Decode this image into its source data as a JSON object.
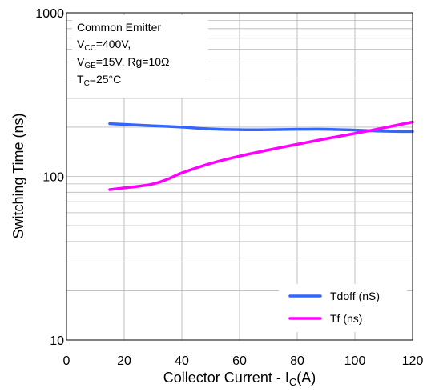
{
  "chart_data": {
    "type": "line",
    "xlabel": "Collector  Current - I",
    "xlabel_sub": "C",
    "xlabel_suffix": "(A)",
    "ylabel": "Switching Time (ns)",
    "xlim": [
      0,
      120
    ],
    "ylim": [
      10,
      1000
    ],
    "yscale": "log",
    "grid": true,
    "legend_position": "bottom-right",
    "x_ticks": [
      "0",
      "20",
      "40",
      "60",
      "80",
      "100",
      "120"
    ],
    "y_ticks": [
      "10",
      "100",
      "1000"
    ],
    "annotation": {
      "line1": "Common Emitter",
      "line2_V": "V",
      "line2_sub": "CC",
      "line2_rest": "=400V,",
      "line3_V": "V",
      "line3_sub": "GE",
      "line3_rest": "=15V, Rg=10Ω",
      "line4_T": "T",
      "line4_sub": "C",
      "line4_rest": "=25°C"
    },
    "series": [
      {
        "name": "Tdoff (nS)",
        "color": "#3366ff",
        "x": [
          15,
          20,
          30,
          40,
          50,
          60,
          70,
          80,
          90,
          100,
          110,
          120
        ],
        "y": [
          210,
          208,
          204,
          200,
          195,
          193,
          193,
          194,
          194,
          192,
          189,
          188
        ]
      },
      {
        "name": "Tf (ns)",
        "color": "#ff00ff",
        "x": [
          15,
          20,
          25,
          30,
          35,
          40,
          50,
          60,
          70,
          80,
          90,
          100,
          110,
          120
        ],
        "y": [
          83,
          85,
          87,
          90,
          96,
          105,
          120,
          133,
          145,
          157,
          170,
          183,
          198,
          215
        ]
      }
    ]
  }
}
